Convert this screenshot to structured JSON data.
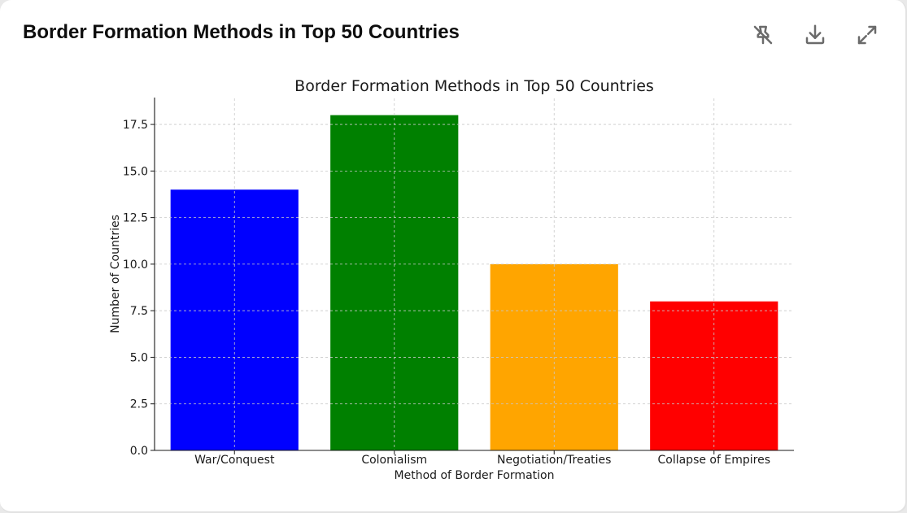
{
  "card": {
    "title": "Border Formation Methods in Top 50 Countries",
    "icons": [
      "pin-off-icon",
      "download-icon",
      "expand-icon"
    ]
  },
  "chart_data": {
    "type": "bar",
    "title": "Border Formation Methods in Top 50 Countries",
    "xlabel": "Method of Border Formation",
    "ylabel": "Number of Countries",
    "categories": [
      "War/Conquest",
      "Colonialism",
      "Negotiation/Treaties",
      "Collapse of Empires"
    ],
    "values": [
      14,
      18,
      10,
      8
    ],
    "colors": [
      "#0000ff",
      "#008000",
      "#ffa500",
      "#ff0000"
    ],
    "ylim": [
      0,
      18.9
    ],
    "yticks": [
      0.0,
      2.5,
      5.0,
      7.5,
      10.0,
      12.5,
      15.0,
      17.5
    ],
    "grid": true
  }
}
